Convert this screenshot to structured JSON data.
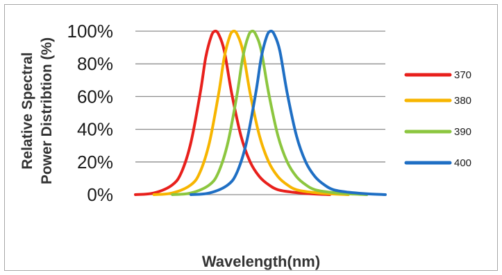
{
  "chart_data": {
    "type": "line",
    "title": "",
    "xlabel": "Wavelength(nm)",
    "ylabel_lines": [
      "Relative Spectral",
      "Power Distribtion (%)"
    ],
    "x_ticks_shown": false,
    "yticks": [
      "0%",
      "20%",
      "40%",
      "60%",
      "80%",
      "100%"
    ],
    "ylim": [
      0,
      100
    ],
    "grid": "horizontal",
    "legend_position": "right",
    "series": [
      {
        "name": "370",
        "color": "#e8201c",
        "peak_wavelength": 370,
        "values": [
          [
            325,
            0
          ],
          [
            335,
            1
          ],
          [
            345,
            6
          ],
          [
            350,
            14
          ],
          [
            355,
            32
          ],
          [
            360,
            62
          ],
          [
            363,
            84
          ],
          [
            366,
            97
          ],
          [
            368,
            100
          ],
          [
            370,
            98
          ],
          [
            373,
            88
          ],
          [
            377,
            62
          ],
          [
            382,
            36
          ],
          [
            387,
            20
          ],
          [
            392,
            11
          ],
          [
            397,
            6
          ],
          [
            402,
            3
          ],
          [
            410,
            1.5
          ],
          [
            420,
            0.5
          ],
          [
            430,
            0
          ]
        ]
      },
      {
        "name": "380",
        "color": "#f7b500",
        "peak_wavelength": 380,
        "values": [
          [
            335,
            0
          ],
          [
            345,
            1
          ],
          [
            355,
            6
          ],
          [
            360,
            14
          ],
          [
            365,
            32
          ],
          [
            370,
            62
          ],
          [
            373,
            84
          ],
          [
            376,
            97
          ],
          [
            378,
            100
          ],
          [
            380,
            98
          ],
          [
            383,
            88
          ],
          [
            387,
            62
          ],
          [
            392,
            36
          ],
          [
            397,
            20
          ],
          [
            402,
            11
          ],
          [
            407,
            6
          ],
          [
            412,
            3
          ],
          [
            420,
            1.5
          ],
          [
            430,
            0.5
          ],
          [
            440,
            0
          ]
        ]
      },
      {
        "name": "390",
        "color": "#8cc63f",
        "peak_wavelength": 390,
        "values": [
          [
            345,
            0
          ],
          [
            355,
            1
          ],
          [
            365,
            6
          ],
          [
            370,
            14
          ],
          [
            375,
            32
          ],
          [
            380,
            62
          ],
          [
            383,
            84
          ],
          [
            386,
            97
          ],
          [
            388,
            100
          ],
          [
            390,
            98
          ],
          [
            393,
            88
          ],
          [
            397,
            62
          ],
          [
            402,
            36
          ],
          [
            407,
            20
          ],
          [
            412,
            11
          ],
          [
            417,
            6
          ],
          [
            422,
            3
          ],
          [
            430,
            1.5
          ],
          [
            440,
            0.5
          ],
          [
            450,
            0
          ]
        ]
      },
      {
        "name": "400",
        "color": "#1f6fc4",
        "peak_wavelength": 400,
        "values": [
          [
            355,
            0
          ],
          [
            365,
            1
          ],
          [
            375,
            6
          ],
          [
            380,
            14
          ],
          [
            385,
            32
          ],
          [
            390,
            62
          ],
          [
            393,
            84
          ],
          [
            396,
            97
          ],
          [
            398,
            100
          ],
          [
            400,
            98
          ],
          [
            403,
            88
          ],
          [
            407,
            62
          ],
          [
            412,
            36
          ],
          [
            417,
            20
          ],
          [
            422,
            11
          ],
          [
            427,
            6
          ],
          [
            432,
            3
          ],
          [
            440,
            1.5
          ],
          [
            450,
            0.5
          ],
          [
            460,
            0
          ]
        ]
      }
    ],
    "xlim": [
      325,
      460
    ]
  }
}
